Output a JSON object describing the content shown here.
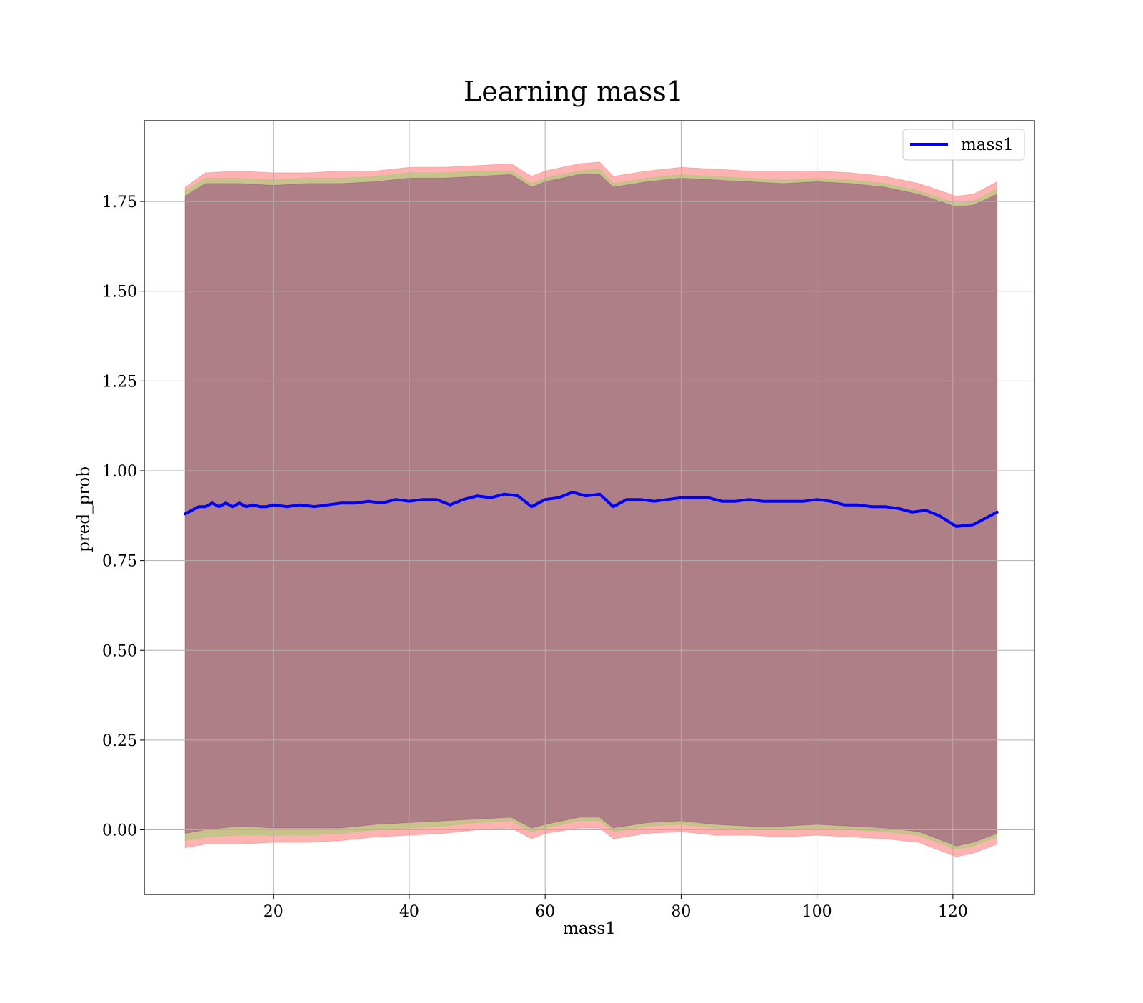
{
  "chart_data": {
    "type": "line",
    "title": "Learning mass1",
    "xlabel": "mass1",
    "ylabel": "pred_prob",
    "xlim": [
      1,
      132
    ],
    "ylim": [
      -0.18,
      1.975
    ],
    "xticks": [
      20,
      40,
      60,
      80,
      100,
      120
    ],
    "xtick_labels": [
      "20",
      "40",
      "60",
      "80",
      "100",
      "120"
    ],
    "yticks": [
      0.0,
      0.25,
      0.5,
      0.75,
      1.0,
      1.25,
      1.5,
      1.75
    ],
    "ytick_labels": [
      "0.00",
      "0.25",
      "0.50",
      "0.75",
      "1.00",
      "1.25",
      "1.50",
      "1.75"
    ],
    "grid": true,
    "legend_position": "top-right",
    "series": [
      {
        "name": "mass1",
        "color": "#0000ff",
        "x": [
          7,
          8,
          9,
          10,
          11,
          12,
          13,
          14,
          15,
          16,
          17,
          18,
          19,
          20,
          22,
          24,
          26,
          28,
          30,
          32,
          34,
          36,
          38,
          40,
          42,
          44,
          46,
          48,
          50,
          52,
          54,
          56,
          58,
          60,
          62,
          64,
          66,
          68,
          70,
          72,
          74,
          76,
          78,
          80,
          82,
          84,
          86,
          88,
          90,
          92,
          94,
          96,
          98,
          100,
          102,
          104,
          106,
          108,
          110,
          112,
          114,
          116,
          118,
          120.5,
          123,
          126.5
        ],
        "y": [
          0.88,
          0.89,
          0.9,
          0.9,
          0.91,
          0.9,
          0.91,
          0.9,
          0.91,
          0.9,
          0.905,
          0.9,
          0.9,
          0.905,
          0.9,
          0.905,
          0.9,
          0.905,
          0.91,
          0.91,
          0.915,
          0.91,
          0.92,
          0.915,
          0.92,
          0.92,
          0.905,
          0.92,
          0.93,
          0.925,
          0.935,
          0.93,
          0.9,
          0.92,
          0.925,
          0.94,
          0.93,
          0.935,
          0.9,
          0.92,
          0.92,
          0.915,
          0.92,
          0.925,
          0.925,
          0.925,
          0.915,
          0.915,
          0.92,
          0.915,
          0.915,
          0.915,
          0.915,
          0.92,
          0.915,
          0.905,
          0.905,
          0.9,
          0.9,
          0.895,
          0.885,
          0.89,
          0.875,
          0.845,
          0.85,
          0.885
        ]
      }
    ],
    "bands": [
      {
        "color": "#ff0000",
        "opacity": 0.3,
        "x": [
          7,
          10,
          15,
          20,
          25,
          30,
          35,
          40,
          45,
          50,
          55,
          58,
          60,
          65,
          68,
          70,
          75,
          80,
          85,
          90,
          95,
          100,
          105,
          110,
          115,
          120.5,
          123,
          126.5
        ],
        "lower": [
          -0.05,
          -0.04,
          -0.04,
          -0.035,
          -0.035,
          -0.03,
          -0.02,
          -0.015,
          -0.01,
          -0.0,
          0.005,
          -0.025,
          -0.01,
          0.005,
          0.005,
          -0.025,
          -0.01,
          -0.005,
          -0.015,
          -0.015,
          -0.02,
          -0.015,
          -0.02,
          -0.025,
          -0.035,
          -0.075,
          -0.065,
          -0.04
        ],
        "upper": [
          1.79,
          1.83,
          1.835,
          1.83,
          1.83,
          1.835,
          1.835,
          1.845,
          1.845,
          1.85,
          1.855,
          1.82,
          1.835,
          1.855,
          1.86,
          1.82,
          1.835,
          1.845,
          1.84,
          1.835,
          1.835,
          1.835,
          1.83,
          1.82,
          1.8,
          1.765,
          1.77,
          1.805
        ]
      },
      {
        "color": "#00ff00",
        "opacity": 0.22,
        "x": [
          7,
          10,
          15,
          20,
          25,
          30,
          35,
          40,
          45,
          50,
          55,
          58,
          60,
          65,
          68,
          70,
          75,
          80,
          85,
          90,
          95,
          100,
          105,
          110,
          115,
          120.5,
          123,
          126.5
        ],
        "lower": [
          -0.03,
          -0.02,
          -0.015,
          -0.015,
          -0.015,
          -0.01,
          0.0,
          0.005,
          0.01,
          0.02,
          0.025,
          -0.005,
          0.005,
          0.025,
          0.025,
          -0.005,
          0.01,
          0.015,
          0.005,
          0.0,
          0.0,
          0.005,
          -0.0,
          -0.005,
          -0.015,
          -0.055,
          -0.045,
          -0.02
        ],
        "upper": [
          1.78,
          1.815,
          1.815,
          1.81,
          1.815,
          1.815,
          1.82,
          1.83,
          1.83,
          1.835,
          1.835,
          1.8,
          1.815,
          1.835,
          1.84,
          1.8,
          1.815,
          1.825,
          1.82,
          1.815,
          1.81,
          1.815,
          1.81,
          1.8,
          1.78,
          1.745,
          1.75,
          1.785
        ]
      },
      {
        "color": "#800080",
        "opacity": 0.35,
        "x": [
          7,
          10,
          15,
          20,
          25,
          30,
          35,
          40,
          45,
          50,
          55,
          58,
          60,
          65,
          68,
          70,
          75,
          80,
          85,
          90,
          95,
          100,
          105,
          110,
          115,
          120.5,
          123,
          126.5
        ],
        "lower": [
          -0.01,
          0.0,
          0.01,
          0.005,
          0.005,
          0.005,
          0.015,
          0.02,
          0.025,
          0.03,
          0.035,
          0.005,
          0.015,
          0.035,
          0.035,
          0.005,
          0.02,
          0.025,
          0.015,
          0.01,
          0.01,
          0.015,
          0.01,
          0.005,
          -0.005,
          -0.045,
          -0.035,
          -0.01
        ],
        "upper": [
          1.765,
          1.8,
          1.8,
          1.795,
          1.8,
          1.8,
          1.805,
          1.815,
          1.815,
          1.82,
          1.825,
          1.79,
          1.805,
          1.825,
          1.825,
          1.79,
          1.805,
          1.815,
          1.81,
          1.805,
          1.8,
          1.805,
          1.8,
          1.79,
          1.77,
          1.735,
          1.74,
          1.77
        ]
      }
    ]
  }
}
